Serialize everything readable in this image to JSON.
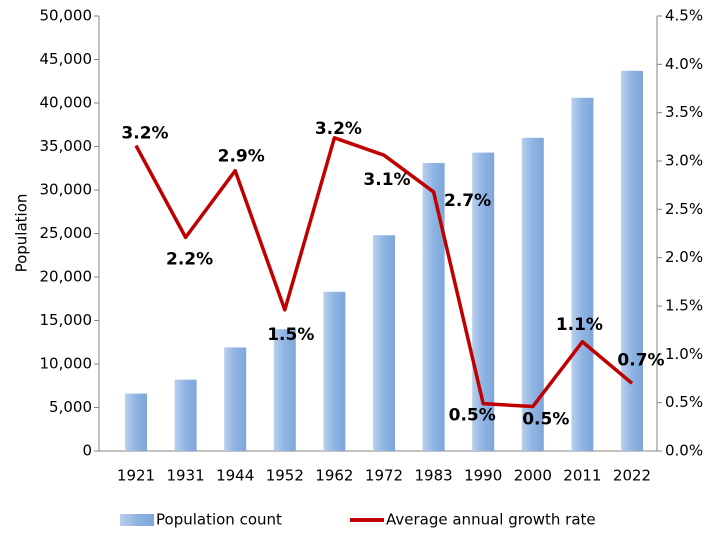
{
  "chart_data": {
    "type": "bar_line",
    "categories": [
      "1921",
      "1931",
      "1944",
      "1952",
      "1962",
      "1972",
      "1983",
      "1990",
      "2000",
      "2011",
      "2022"
    ],
    "y_label": "Population",
    "series": [
      {
        "name": "Population count",
        "type": "bar",
        "color": "#8eb4e3",
        "values": [
          6600,
          8200,
          11900,
          14000,
          18300,
          24800,
          33100,
          34300,
          36000,
          40600,
          43700
        ]
      },
      {
        "name": "Average annual growth rate",
        "type": "line",
        "axis": "y2",
        "color": "#c00000",
        "values": [
          3.16,
          2.21,
          2.9,
          1.46,
          3.24,
          3.06,
          2.68,
          0.49,
          0.46,
          1.13,
          0.7
        ],
        "value_labels": [
          "3.2%",
          "2.2%",
          "2.9%",
          "1.5%",
          "3.2%",
          "3.1%",
          "2.7%",
          "0.5%",
          "0.5%",
          "1.1%",
          "0.7%"
        ]
      }
    ],
    "ylim": [
      0,
      50000
    ],
    "yticks": [
      0,
      {
        "value": 5000,
        "label": "5,000"
      },
      {
        "value": 10000,
        "label": "10,000"
      },
      {
        "value": 15000,
        "label": "15,000"
      },
      {
        "value": 20000,
        "label": "20,000"
      },
      {
        "value": 25000,
        "label": "25,000"
      },
      {
        "value": 30000,
        "label": "30,000"
      },
      {
        "value": 35000,
        "label": "35,000"
      },
      {
        "value": 40000,
        "label": "40,000"
      },
      {
        "value": 45000,
        "label": "45,000"
      },
      {
        "value": 50000,
        "label": "50,000"
      }
    ],
    "y2lim": [
      0,
      4.5
    ],
    "y2ticks": [
      {
        "value": 0,
        "label": "0.0%"
      },
      {
        "value": 0.5,
        "label": "0.5%"
      },
      {
        "value": 1,
        "label": "1.0%"
      },
      {
        "value": 1.5,
        "label": "1.5%"
      },
      {
        "value": 2,
        "label": "2.0%"
      },
      {
        "value": 2.5,
        "label": "2.5%"
      },
      {
        "value": 3,
        "label": "3.0%"
      },
      {
        "value": 3.5,
        "label": "3.5%"
      },
      {
        "value": 4,
        "label": "4.0%"
      },
      {
        "value": 4.5,
        "label": "4.5%"
      }
    ],
    "legend": "bottom"
  }
}
